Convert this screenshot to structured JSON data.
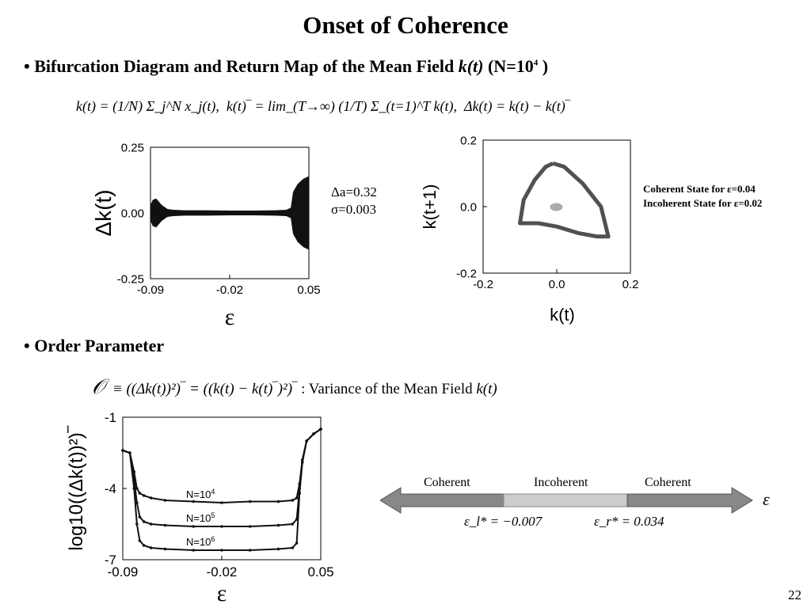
{
  "slide": {
    "title": "Onset of Coherence",
    "page_number": "22",
    "bullet_mark": "•",
    "bullet1": {
      "text_prefix": "Bifurcation Diagram and Return Map of the Mean Field ",
      "k_symbol": "k(t)",
      "n_prefix": " (N=10",
      "n_exp": "4",
      "n_suffix": " )"
    },
    "bullet2": {
      "text": "Order Parameter"
    },
    "formula1": {
      "k_def": "k(t) = (1/N) Σ_j^N x_j(t),",
      "mean_def": "k(t)‾ = lim_(T→∞) (1/T) Σ_(t=1)^T k(t),",
      "delta_def": "Δk(t) = k(t) − k(t)‾"
    },
    "formula2": {
      "symbol": "𝒪",
      "lhs": "≡ ((Δk(t))²)‾ = ((k(t) − k(t)‾)²)‾",
      "description": ": Variance of the Mean Field",
      "k_symbol": "k(t)"
    },
    "bifurcation_annotation": {
      "line1": "Δa=0.32",
      "line2": "σ=0.003"
    },
    "return_map_notes": {
      "line1": "Coherent State for ε=0.04",
      "line2": "Incoherent State for ε=0.02"
    },
    "phase_bar": {
      "labels": [
        "Coherent",
        "Incoherent",
        "Coherent"
      ],
      "axis_symbol": "ε",
      "left_threshold": "ε_l* = −0.007",
      "right_threshold": "ε_r* = 0.034"
    }
  },
  "chart_data": [
    {
      "type": "scatter",
      "title": "",
      "xlabel": "ε",
      "ylabel": "Δk(t)",
      "xlim": [
        -0.09,
        0.05
      ],
      "ylim": [
        -0.25,
        0.25
      ],
      "xticks": [
        "-0.09",
        "-0.02",
        "0.05"
      ],
      "yticks": [
        "0.25",
        "0.00",
        "-0.25"
      ],
      "envelope": {
        "x": [
          -0.09,
          -0.088,
          -0.085,
          -0.083,
          -0.08,
          -0.075,
          -0.07,
          -0.06,
          -0.04,
          -0.02,
          0.0,
          0.02,
          0.03,
          0.034,
          0.036,
          0.04,
          0.045,
          0.05
        ],
        "half_width": [
          0.03,
          0.05,
          0.055,
          0.045,
          0.03,
          0.015,
          0.012,
          0.01,
          0.01,
          0.009,
          0.009,
          0.01,
          0.012,
          0.02,
          0.08,
          0.11,
          0.13,
          0.14
        ]
      }
    },
    {
      "type": "scatter",
      "title": "",
      "xlabel": "k(t)",
      "ylabel": "k(t+1)",
      "xlim": [
        -0.2,
        0.2
      ],
      "ylim": [
        -0.2,
        0.2
      ],
      "xticks": [
        "-0.2",
        "0.0",
        "0.2"
      ],
      "yticks": [
        "0.2",
        "0.0",
        "-0.2"
      ],
      "series": [
        {
          "x": [
            -0.01,
            0.02,
            0.07,
            0.12,
            0.14,
            0.11,
            0.06,
            0.0,
            -0.05,
            -0.1,
            -0.09,
            -0.06,
            -0.03,
            -0.01
          ],
          "y": [
            0.13,
            0.12,
            0.07,
            0.0,
            -0.09,
            -0.09,
            -0.08,
            -0.06,
            -0.05,
            -0.05,
            0.02,
            0.08,
            0.12,
            0.13
          ]
        },
        {
          "x": [
            -0.01,
            0.0,
            0.01,
            -0.005
          ],
          "y": [
            0.0,
            0.01,
            -0.005,
            -0.01
          ]
        }
      ]
    },
    {
      "type": "line",
      "title": "",
      "xlabel": "ε",
      "ylabel": "log10((Δk(t))²)‾",
      "xlim": [
        -0.09,
        0.05
      ],
      "ylim": [
        -7,
        -1
      ],
      "xticks": [
        "-0.09",
        "-0.02",
        "0.05"
      ],
      "yticks": [
        "-1",
        "-4",
        "-7"
      ],
      "x": [
        -0.09,
        -0.085,
        -0.082,
        -0.08,
        -0.078,
        -0.075,
        -0.07,
        -0.06,
        -0.04,
        -0.02,
        0.0,
        0.02,
        0.03,
        0.033,
        0.035,
        0.037,
        0.04,
        0.045,
        0.05
      ],
      "series": [
        {
          "name": "N=10^4",
          "values": [
            -2.4,
            -2.5,
            -3.3,
            -4.0,
            -4.2,
            -4.3,
            -4.4,
            -4.5,
            -4.55,
            -4.6,
            -4.55,
            -4.55,
            -4.5,
            -4.4,
            -3.8,
            -2.8,
            -2.0,
            -1.7,
            -1.5
          ]
        },
        {
          "name": "N=10^5",
          "values": [
            -2.4,
            -2.5,
            -3.6,
            -4.6,
            -5.2,
            -5.4,
            -5.5,
            -5.55,
            -5.6,
            -5.6,
            -5.6,
            -5.55,
            -5.5,
            -5.3,
            -4.0,
            -2.8,
            -2.0,
            -1.7,
            -1.5
          ]
        },
        {
          "name": "N=10^6",
          "values": [
            -2.4,
            -2.5,
            -4.0,
            -5.5,
            -6.2,
            -6.4,
            -6.5,
            -6.55,
            -6.6,
            -6.6,
            -6.6,
            -6.55,
            -6.5,
            -6.3,
            -4.2,
            -2.9,
            -2.0,
            -1.7,
            -1.5
          ]
        }
      ],
      "labels": [
        {
          "base": "N=10",
          "exp": "4"
        },
        {
          "base": "N=10",
          "exp": "5"
        },
        {
          "base": "N=10",
          "exp": "6"
        }
      ]
    }
  ]
}
